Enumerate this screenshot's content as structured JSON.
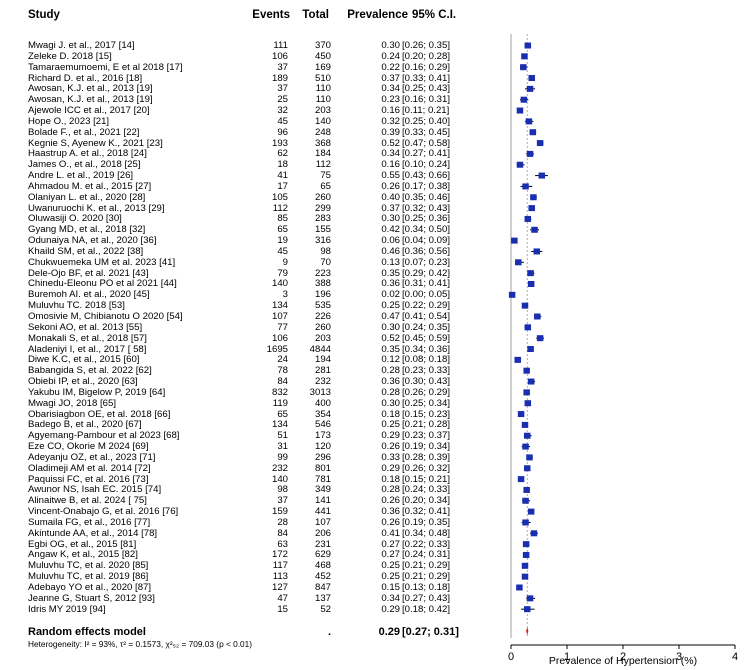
{
  "headers": {
    "study": "Study",
    "events": "Events",
    "total": "Total",
    "prevalence": "Prevalence",
    "ci": "95% C.I."
  },
  "summary": {
    "label": "Random effects model",
    "events": "",
    "total": ".",
    "prevalence": "0.29",
    "ci": "[0.27; 0.31]",
    "estimate": 0.29,
    "lower": 0.27,
    "upper": 0.31
  },
  "heterogeneity": "Heterogeneity: I² = 93%, τ² = 0.1573, χ²₅₂ = 709.03 (p < 0.01)",
  "chart_data": {
    "type": "forest",
    "xlabel": "Prevalence of Hypertension (%)",
    "xticks": [
      "0",
      "1",
      "2",
      "3",
      "4"
    ],
    "xlim": [
      0,
      4
    ],
    "marker_color": "#1a2fb0",
    "summary_color": "#d32020",
    "studies": [
      {
        "study": "Mwagi J. et al., 2017 [14]",
        "events": "111",
        "total": "370",
        "prev": "0.30",
        "ci": "[0.26; 0.35]",
        "est": 0.3,
        "lo": 0.26,
        "hi": 0.35
      },
      {
        "study": "Zeleke D. 2018 [15]",
        "events": "106",
        "total": "450",
        "prev": "0.24",
        "ci": "[0.20; 0.28]",
        "est": 0.24,
        "lo": 0.2,
        "hi": 0.28
      },
      {
        "study": "Tamaraemumoemi, E et al 2018 [17]",
        "events": "37",
        "total": "169",
        "prev": "0.22",
        "ci": "[0.16; 0.29]",
        "est": 0.22,
        "lo": 0.16,
        "hi": 0.29
      },
      {
        "study": "Richard D. et al., 2016 [18]",
        "events": "189",
        "total": "510",
        "prev": "0.37",
        "ci": "[0.33; 0.41]",
        "est": 0.37,
        "lo": 0.33,
        "hi": 0.41
      },
      {
        "study": "Awosan, K.J. et al., 2013 [19]",
        "events": "37",
        "total": "110",
        "prev": "0.34",
        "ci": "[0.25; 0.43]",
        "est": 0.34,
        "lo": 0.25,
        "hi": 0.43
      },
      {
        "study": "Awosan, K.J. et al., 2013 [19]",
        "events": "25",
        "total": "110",
        "prev": "0.23",
        "ci": "[0.16; 0.31]",
        "est": 0.23,
        "lo": 0.16,
        "hi": 0.31
      },
      {
        "study": "Ajewole ICC et al., 2017 [20]",
        "events": "32",
        "total": "203",
        "prev": "0.16",
        "ci": "[0.11; 0.21]",
        "est": 0.16,
        "lo": 0.11,
        "hi": 0.21
      },
      {
        "study": "Hope O., 2023 [21]",
        "events": "45",
        "total": "140",
        "prev": "0.32",
        "ci": "[0.25; 0.40]",
        "est": 0.32,
        "lo": 0.25,
        "hi": 0.4
      },
      {
        "study": "Bolade F., et al., 2021 [22]",
        "events": "96",
        "total": "248",
        "prev": "0.39",
        "ci": "[0.33; 0.45]",
        "est": 0.39,
        "lo": 0.33,
        "hi": 0.45
      },
      {
        "study": "Kegnie S, Ayenew K., 2021 [23]",
        "events": "193",
        "total": "368",
        "prev": "0.52",
        "ci": "[0.47; 0.58]",
        "est": 0.52,
        "lo": 0.47,
        "hi": 0.58
      },
      {
        "study": "Haastrup A. et al., 2018 [24]",
        "events": "62",
        "total": "184",
        "prev": "0.34",
        "ci": "[0.27; 0.41]",
        "est": 0.34,
        "lo": 0.27,
        "hi": 0.41
      },
      {
        "study": "James O., et al., 2018 [25]",
        "events": "18",
        "total": "112",
        "prev": "0.16",
        "ci": "[0.10; 0.24]",
        "est": 0.16,
        "lo": 0.1,
        "hi": 0.24
      },
      {
        "study": "Andre L. et al., 2019 [26]",
        "events": "41",
        "total": "75",
        "prev": "0.55",
        "ci": "[0.43; 0.66]",
        "est": 0.55,
        "lo": 0.43,
        "hi": 0.66
      },
      {
        "study": "Ahmadou M. et al., 2015 [27]",
        "events": "17",
        "total": "65",
        "prev": "0.26",
        "ci": "[0.17; 0.38]",
        "est": 0.26,
        "lo": 0.17,
        "hi": 0.38
      },
      {
        "study": "Olaniyan L. et al., 2020 [28]",
        "events": "105",
        "total": "260",
        "prev": "0.40",
        "ci": "[0.35; 0.46]",
        "est": 0.4,
        "lo": 0.35,
        "hi": 0.46
      },
      {
        "study": "Uwanuruochi K. et al., 2013 [29]",
        "events": "112",
        "total": "299",
        "prev": "0.37",
        "ci": "[0.32; 0.43]",
        "est": 0.37,
        "lo": 0.32,
        "hi": 0.43
      },
      {
        "study": "Oluwasiji O. 2020 [30]",
        "events": "85",
        "total": "283",
        "prev": "0.30",
        "ci": "[0.25; 0.36]",
        "est": 0.3,
        "lo": 0.25,
        "hi": 0.36
      },
      {
        "study": "Gyang MD, et al., 2018 [32]",
        "events": "65",
        "total": "155",
        "prev": "0.42",
        "ci": "[0.34; 0.50]",
        "est": 0.42,
        "lo": 0.34,
        "hi": 0.5
      },
      {
        "study": "Odunaiya NA, et al., 2020 [36]",
        "events": "19",
        "total": "316",
        "prev": "0.06",
        "ci": "[0.04; 0.09]",
        "est": 0.06,
        "lo": 0.04,
        "hi": 0.09
      },
      {
        "study": "Khaild SM, et al., 2022 [38]",
        "events": "45",
        "total": "98",
        "prev": "0.46",
        "ci": "[0.36; 0.56]",
        "est": 0.46,
        "lo": 0.36,
        "hi": 0.56
      },
      {
        "study": "Chukwuemeka UM et al. 2023 [41]",
        "events": "9",
        "total": "70",
        "prev": "0.13",
        "ci": "[0.07; 0.23]",
        "est": 0.13,
        "lo": 0.07,
        "hi": 0.23
      },
      {
        "study": "Dele-Ojo BF, et al. 2021 [43]",
        "events": "79",
        "total": "223",
        "prev": "0.35",
        "ci": "[0.29; 0.42]",
        "est": 0.35,
        "lo": 0.29,
        "hi": 0.42
      },
      {
        "study": "Chinedu-Eleonu PO et al 2021 [44]",
        "events": "140",
        "total": "388",
        "prev": "0.36",
        "ci": "[0.31; 0.41]",
        "est": 0.36,
        "lo": 0.31,
        "hi": 0.41
      },
      {
        "study": "Buremoh AI. et al., 2020 [45]",
        "events": "3",
        "total": "196",
        "prev": "0.02",
        "ci": "[0.00; 0.05]",
        "est": 0.02,
        "lo": 0.0,
        "hi": 0.05
      },
      {
        "study": "Muluvhu TC. 2018 [53]",
        "events": "134",
        "total": "535",
        "prev": "0.25",
        "ci": "[0.22; 0.29]",
        "est": 0.25,
        "lo": 0.22,
        "hi": 0.29
      },
      {
        "study": "Omosivie M, Chibianotu O 2020 [54]",
        "events": "107",
        "total": "226",
        "prev": "0.47",
        "ci": "[0.41; 0.54]",
        "est": 0.47,
        "lo": 0.41,
        "hi": 0.54
      },
      {
        "study": "Sekoni AO, et al. 2013 [55]",
        "events": "77",
        "total": "260",
        "prev": "0.30",
        "ci": "[0.24; 0.35]",
        "est": 0.3,
        "lo": 0.24,
        "hi": 0.35
      },
      {
        "study": "Monakali S, et al., 2018 [57]",
        "events": "106",
        "total": "203",
        "prev": "0.52",
        "ci": "[0.45; 0.59]",
        "est": 0.52,
        "lo": 0.45,
        "hi": 0.59
      },
      {
        "study": "Aladeniyi I, et al., 2017 [ 58]",
        "events": "1695",
        "total": "4844",
        "prev": "0.35",
        "ci": "[0.34; 0.36]",
        "est": 0.35,
        "lo": 0.34,
        "hi": 0.36
      },
      {
        "study": "Diwe K.C, et al., 2015 [60]",
        "events": "24",
        "total": "194",
        "prev": "0.12",
        "ci": "[0.08; 0.18]",
        "est": 0.12,
        "lo": 0.08,
        "hi": 0.18
      },
      {
        "study": "Babangida S, et al. 2022 [62]",
        "events": "78",
        "total": "281",
        "prev": "0.28",
        "ci": "[0.23; 0.33]",
        "est": 0.28,
        "lo": 0.23,
        "hi": 0.33
      },
      {
        "study": "Obiebi IP, et al., 2020 [63]",
        "events": "84",
        "total": "232",
        "prev": "0.36",
        "ci": "[0.30; 0.43]",
        "est": 0.36,
        "lo": 0.3,
        "hi": 0.43
      },
      {
        "study": "Yakubu IM, Bigelow P, 2019 [64]",
        "events": "832",
        "total": "3013",
        "prev": "0.28",
        "ci": "[0.26; 0.29]",
        "est": 0.28,
        "lo": 0.26,
        "hi": 0.29
      },
      {
        "study": "Mwagi JO, 2018 [65]",
        "events": "119",
        "total": "400",
        "prev": "0.30",
        "ci": "[0.25; 0.34]",
        "est": 0.3,
        "lo": 0.25,
        "hi": 0.34
      },
      {
        "study": "Obarisiagbon OE, et al. 2018 [66]",
        "events": "65",
        "total": "354",
        "prev": "0.18",
        "ci": "[0.15; 0.23]",
        "est": 0.18,
        "lo": 0.15,
        "hi": 0.23
      },
      {
        "study": "Badego B, et al., 2020 [67]",
        "events": "134",
        "total": "546",
        "prev": "0.25",
        "ci": "[0.21; 0.28]",
        "est": 0.25,
        "lo": 0.21,
        "hi": 0.28
      },
      {
        "study": "Agyemang-Pambour et al 2023 [68]",
        "events": "51",
        "total": "173",
        "prev": "0.29",
        "ci": "[0.23; 0.37]",
        "est": 0.29,
        "lo": 0.23,
        "hi": 0.37
      },
      {
        "study": "Eze CO, Okorie M 2024 [69]",
        "events": "31",
        "total": "120",
        "prev": "0.26",
        "ci": "[0.19; 0.34]",
        "est": 0.26,
        "lo": 0.19,
        "hi": 0.34
      },
      {
        "study": "Adeyanju OZ, et al., 2023 [71]",
        "events": "99",
        "total": "296",
        "prev": "0.33",
        "ci": "[0.28; 0.39]",
        "est": 0.33,
        "lo": 0.28,
        "hi": 0.39
      },
      {
        "study": "Oladimeji AM et al. 2014 [72]",
        "events": "232",
        "total": "801",
        "prev": "0.29",
        "ci": "[0.26; 0.32]",
        "est": 0.29,
        "lo": 0.26,
        "hi": 0.32
      },
      {
        "study": "Paquissi FC, et al. 2016 [73]",
        "events": "140",
        "total": "781",
        "prev": "0.18",
        "ci": "[0.15; 0.21]",
        "est": 0.18,
        "lo": 0.15,
        "hi": 0.21
      },
      {
        "study": "Awunor NS, Isah EC. 2015 [74]",
        "events": "98",
        "total": "349",
        "prev": "0.28",
        "ci": "[0.24; 0.33]",
        "est": 0.28,
        "lo": 0.24,
        "hi": 0.33
      },
      {
        "study": "Alinaitwe B, et al. 2024 [ 75]",
        "events": "37",
        "total": "141",
        "prev": "0.26",
        "ci": "[0.20; 0.34]",
        "est": 0.26,
        "lo": 0.2,
        "hi": 0.34
      },
      {
        "study": "Vincent-Onabajo G, et al. 2016 [76]",
        "events": "159",
        "total": "441",
        "prev": "0.36",
        "ci": "[0.32; 0.41]",
        "est": 0.36,
        "lo": 0.32,
        "hi": 0.41
      },
      {
        "study": "Sumaila FG, et al., 2016 [77]",
        "events": "28",
        "total": "107",
        "prev": "0.26",
        "ci": "[0.19; 0.35]",
        "est": 0.26,
        "lo": 0.19,
        "hi": 0.35
      },
      {
        "study": "Akintunde AA, et al., 2014 [78]",
        "events": "84",
        "total": "206",
        "prev": "0.41",
        "ci": "[0.34; 0.48]",
        "est": 0.41,
        "lo": 0.34,
        "hi": 0.48
      },
      {
        "study": "Egbi OG, et al., 2015 [81]",
        "events": "63",
        "total": "231",
        "prev": "0.27",
        "ci": "[0.22; 0.33]",
        "est": 0.27,
        "lo": 0.22,
        "hi": 0.33
      },
      {
        "study": "Angaw K, et al., 2015 [82]",
        "events": "172",
        "total": "629",
        "prev": "0.27",
        "ci": "[0.24; 0.31]",
        "est": 0.27,
        "lo": 0.24,
        "hi": 0.31
      },
      {
        "study": "Muluvhu TC, et al. 2020 [85]",
        "events": "117",
        "total": "468",
        "prev": "0.25",
        "ci": "[0.21; 0.29]",
        "est": 0.25,
        "lo": 0.21,
        "hi": 0.29
      },
      {
        "study": "Muluvhu TC, et al. 2019 [86]",
        "events": "113",
        "total": "452",
        "prev": "0.25",
        "ci": "[0.21; 0.29]",
        "est": 0.25,
        "lo": 0.21,
        "hi": 0.29
      },
      {
        "study": "Adebayo YO et al., 2020 [87]",
        "events": "127",
        "total": "847",
        "prev": "0.15",
        "ci": "[0.13; 0.18]",
        "est": 0.15,
        "lo": 0.13,
        "hi": 0.18
      },
      {
        "study": "Jeanne G, Stuart S, 2012 [93]",
        "events": "47",
        "total": "137",
        "prev": "0.34",
        "ci": "[0.27; 0.43]",
        "est": 0.34,
        "lo": 0.27,
        "hi": 0.43
      },
      {
        "study": "Idris MY 2019 [94]",
        "events": "15",
        "total": "52",
        "prev": "0.29",
        "ci": "[0.18; 0.42]",
        "est": 0.29,
        "lo": 0.18,
        "hi": 0.42
      }
    ]
  }
}
